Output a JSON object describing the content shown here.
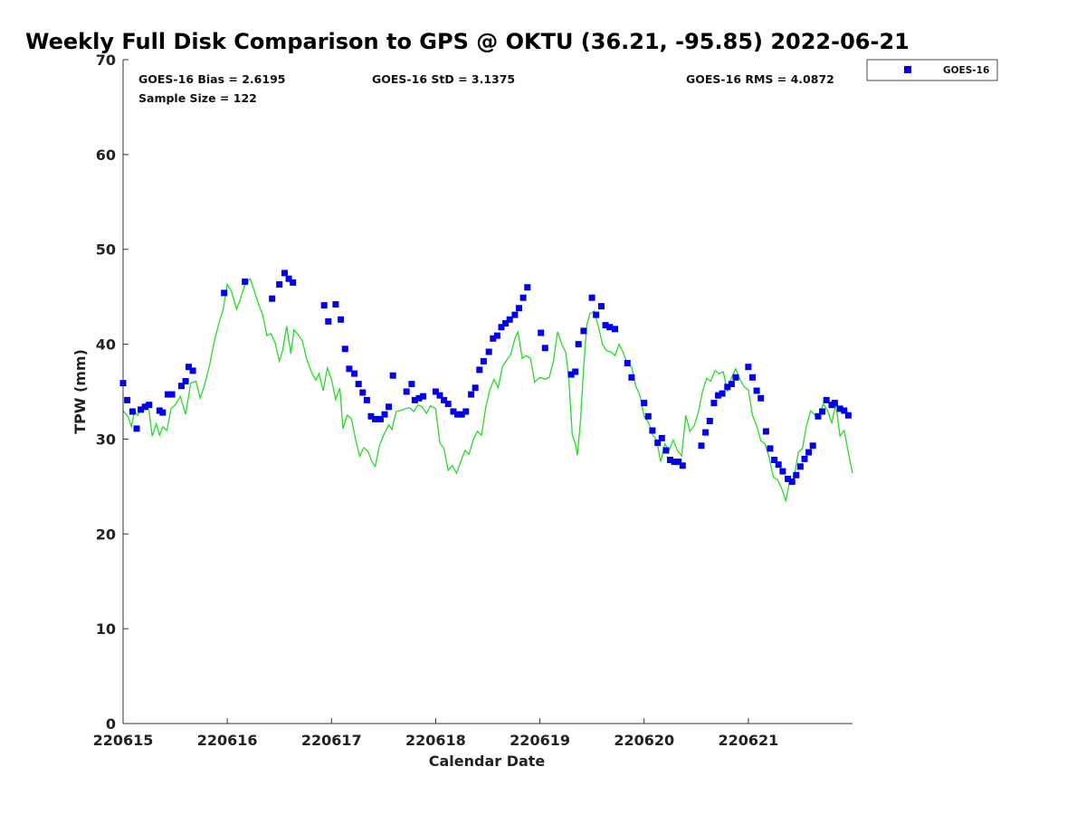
{
  "chart_data": {
    "type": "scatter",
    "title": "Weekly Full Disk Comparison to GPS @ OKTU (36.21, -95.85) 2022-06-21",
    "xlabel": "Calendar Date",
    "ylabel": "TPW (mm)",
    "xlim": [
      0,
      7
    ],
    "ylim": [
      0,
      70
    ],
    "x_ticks": [
      0,
      1,
      2,
      3,
      4,
      5,
      6
    ],
    "x_tick_labels": [
      "220615",
      "220616",
      "220617",
      "220618",
      "220619",
      "220620",
      "220621"
    ],
    "y_ticks": [
      0,
      10,
      20,
      30,
      40,
      50,
      60,
      70
    ],
    "y_tick_labels": [
      "0",
      "10",
      "20",
      "30",
      "40",
      "50",
      "60",
      "70"
    ],
    "x_unit_note": "x values are days elapsed from 220615",
    "stats": {
      "bias": "GOES-16 Bias = 2.6195",
      "sample_size": "Sample Size = 122",
      "std": "GOES-16 StD = 3.1375",
      "rms": "GOES-16 RMS = 4.0872"
    },
    "legend": {
      "position": "top-right",
      "entries": [
        "GOES-16"
      ]
    },
    "colors": {
      "goes": "#0000ee",
      "gps": "#22dd22"
    },
    "series": [
      {
        "name": "GOES-16",
        "kind": "markers",
        "color": "#0000ee",
        "points": [
          [
            0.0,
            35.9
          ],
          [
            0.04,
            34.1
          ],
          [
            0.09,
            32.9
          ],
          [
            0.13,
            31.1
          ],
          [
            0.17,
            33.1
          ],
          [
            0.21,
            33.4
          ],
          [
            0.25,
            33.6
          ],
          [
            0.35,
            33.0
          ],
          [
            0.38,
            32.8
          ],
          [
            0.43,
            34.7
          ],
          [
            0.47,
            34.7
          ],
          [
            0.56,
            35.6
          ],
          [
            0.6,
            36.1
          ],
          [
            0.63,
            37.6
          ],
          [
            0.67,
            37.2
          ],
          [
            0.97,
            45.4
          ],
          [
            1.17,
            46.6
          ],
          [
            1.43,
            44.8
          ],
          [
            1.5,
            46.3
          ],
          [
            1.55,
            47.5
          ],
          [
            1.59,
            46.9
          ],
          [
            1.63,
            46.5
          ],
          [
            1.93,
            44.1
          ],
          [
            1.97,
            42.4
          ],
          [
            2.04,
            44.2
          ],
          [
            2.09,
            42.6
          ],
          [
            2.13,
            39.5
          ],
          [
            2.17,
            37.4
          ],
          [
            2.22,
            36.9
          ],
          [
            2.26,
            35.8
          ],
          [
            2.3,
            34.9
          ],
          [
            2.34,
            34.1
          ],
          [
            2.38,
            32.4
          ],
          [
            2.42,
            32.1
          ],
          [
            2.47,
            32.1
          ],
          [
            2.51,
            32.6
          ],
          [
            2.55,
            33.4
          ],
          [
            2.59,
            36.7
          ],
          [
            2.72,
            35.0
          ],
          [
            2.77,
            35.8
          ],
          [
            2.8,
            34.1
          ],
          [
            2.84,
            34.3
          ],
          [
            2.88,
            34.5
          ],
          [
            3.0,
            35.0
          ],
          [
            3.04,
            34.6
          ],
          [
            3.08,
            34.1
          ],
          [
            3.12,
            33.7
          ],
          [
            3.17,
            32.9
          ],
          [
            3.21,
            32.6
          ],
          [
            3.25,
            32.6
          ],
          [
            3.29,
            32.9
          ],
          [
            3.34,
            34.7
          ],
          [
            3.38,
            35.4
          ],
          [
            3.42,
            37.3
          ],
          [
            3.46,
            38.2
          ],
          [
            3.51,
            39.2
          ],
          [
            3.55,
            40.6
          ],
          [
            3.59,
            40.9
          ],
          [
            3.63,
            41.8
          ],
          [
            3.67,
            42.2
          ],
          [
            3.71,
            42.6
          ],
          [
            3.76,
            43.1
          ],
          [
            3.8,
            43.8
          ],
          [
            3.84,
            44.9
          ],
          [
            3.88,
            46.0
          ],
          [
            4.01,
            41.2
          ],
          [
            4.05,
            39.6
          ],
          [
            4.3,
            36.8
          ],
          [
            4.34,
            37.1
          ],
          [
            4.37,
            40.0
          ],
          [
            4.42,
            41.4
          ],
          [
            4.5,
            44.9
          ],
          [
            4.54,
            43.1
          ],
          [
            4.59,
            44.0
          ],
          [
            4.63,
            42.0
          ],
          [
            4.67,
            41.8
          ],
          [
            4.72,
            41.6
          ],
          [
            4.84,
            38.0
          ],
          [
            4.88,
            36.5
          ],
          [
            5.0,
            33.8
          ],
          [
            5.04,
            32.4
          ],
          [
            5.08,
            30.9
          ],
          [
            5.13,
            29.6
          ],
          [
            5.17,
            30.1
          ],
          [
            5.21,
            28.8
          ],
          [
            5.25,
            27.8
          ],
          [
            5.29,
            27.6
          ],
          [
            5.33,
            27.6
          ],
          [
            5.37,
            27.2
          ],
          [
            5.55,
            29.3
          ],
          [
            5.59,
            30.7
          ],
          [
            5.63,
            31.9
          ],
          [
            5.67,
            33.8
          ],
          [
            5.71,
            34.6
          ],
          [
            5.75,
            34.8
          ],
          [
            5.8,
            35.5
          ],
          [
            5.84,
            35.8
          ],
          [
            5.88,
            36.5
          ],
          [
            6.0,
            37.6
          ],
          [
            6.04,
            36.5
          ],
          [
            6.08,
            35.1
          ],
          [
            6.12,
            34.3
          ],
          [
            6.17,
            30.8
          ],
          [
            6.21,
            29.0
          ],
          [
            6.25,
            27.8
          ],
          [
            6.29,
            27.3
          ],
          [
            6.33,
            26.6
          ],
          [
            6.38,
            25.8
          ],
          [
            6.42,
            25.5
          ],
          [
            6.46,
            26.2
          ],
          [
            6.5,
            27.1
          ],
          [
            6.54,
            27.9
          ],
          [
            6.58,
            28.6
          ],
          [
            6.62,
            29.3
          ],
          [
            6.67,
            32.4
          ],
          [
            6.71,
            32.9
          ],
          [
            6.75,
            34.1
          ],
          [
            6.8,
            33.6
          ],
          [
            6.83,
            33.8
          ],
          [
            6.88,
            33.2
          ],
          [
            6.92,
            33.0
          ],
          [
            6.96,
            32.5
          ]
        ]
      },
      {
        "name": "",
        "kind": "line",
        "color": "#22dd22",
        "points": [
          [
            0.0,
            33.0
          ],
          [
            0.05,
            32.3
          ],
          [
            0.08,
            31.3
          ],
          [
            0.11,
            33.0
          ],
          [
            0.14,
            32.5
          ],
          [
            0.18,
            33.3
          ],
          [
            0.22,
            33.8
          ],
          [
            0.25,
            32.9
          ],
          [
            0.28,
            30.3
          ],
          [
            0.32,
            31.6
          ],
          [
            0.35,
            30.4
          ],
          [
            0.38,
            31.3
          ],
          [
            0.42,
            30.9
          ],
          [
            0.46,
            33.2
          ],
          [
            0.5,
            33.6
          ],
          [
            0.55,
            34.5
          ],
          [
            0.6,
            32.6
          ],
          [
            0.65,
            35.9
          ],
          [
            0.7,
            36.1
          ],
          [
            0.74,
            34.3
          ],
          [
            0.78,
            35.6
          ],
          [
            0.83,
            37.8
          ],
          [
            0.88,
            40.5
          ],
          [
            0.92,
            42.2
          ],
          [
            0.96,
            43.6
          ],
          [
            1.0,
            46.3
          ],
          [
            1.04,
            45.6
          ],
          [
            1.09,
            43.7
          ],
          [
            1.13,
            44.9
          ],
          [
            1.17,
            46.3
          ],
          [
            1.22,
            46.9
          ],
          [
            1.26,
            45.6
          ],
          [
            1.3,
            44.2
          ],
          [
            1.34,
            43.1
          ],
          [
            1.38,
            40.9
          ],
          [
            1.42,
            41.1
          ],
          [
            1.46,
            40.1
          ],
          [
            1.5,
            38.2
          ],
          [
            1.53,
            39.3
          ],
          [
            1.57,
            41.9
          ],
          [
            1.61,
            39.0
          ],
          [
            1.64,
            41.5
          ],
          [
            1.68,
            41.0
          ],
          [
            1.72,
            40.4
          ],
          [
            1.76,
            38.5
          ],
          [
            1.81,
            37.0
          ],
          [
            1.85,
            36.2
          ],
          [
            1.88,
            36.9
          ],
          [
            1.92,
            35.1
          ],
          [
            1.96,
            37.5
          ],
          [
            2.0,
            36.3
          ],
          [
            2.04,
            34.2
          ],
          [
            2.08,
            35.4
          ],
          [
            2.11,
            31.1
          ],
          [
            2.15,
            32.5
          ],
          [
            2.19,
            32.2
          ],
          [
            2.23,
            30.0
          ],
          [
            2.27,
            28.2
          ],
          [
            2.31,
            29.1
          ],
          [
            2.35,
            28.7
          ],
          [
            2.39,
            27.6
          ],
          [
            2.42,
            27.1
          ],
          [
            2.46,
            29.3
          ],
          [
            2.5,
            30.4
          ],
          [
            2.55,
            31.5
          ],
          [
            2.58,
            31.0
          ],
          [
            2.62,
            32.9
          ],
          [
            2.66,
            33.0
          ],
          [
            2.71,
            33.2
          ],
          [
            2.75,
            33.3
          ],
          [
            2.79,
            32.9
          ],
          [
            2.83,
            33.6
          ],
          [
            2.87,
            33.4
          ],
          [
            2.91,
            32.7
          ],
          [
            2.95,
            33.5
          ],
          [
            3.0,
            33.2
          ],
          [
            3.04,
            29.6
          ],
          [
            3.08,
            29.0
          ],
          [
            3.12,
            26.7
          ],
          [
            3.16,
            27.2
          ],
          [
            3.2,
            26.4
          ],
          [
            3.24,
            27.6
          ],
          [
            3.28,
            28.8
          ],
          [
            3.32,
            28.4
          ],
          [
            3.36,
            29.9
          ],
          [
            3.4,
            30.8
          ],
          [
            3.44,
            30.4
          ],
          [
            3.48,
            33.3
          ],
          [
            3.52,
            35.2
          ],
          [
            3.56,
            36.3
          ],
          [
            3.6,
            35.4
          ],
          [
            3.64,
            37.6
          ],
          [
            3.68,
            38.3
          ],
          [
            3.72,
            38.9
          ],
          [
            3.76,
            40.6
          ],
          [
            3.79,
            41.3
          ],
          [
            3.83,
            38.5
          ],
          [
            3.87,
            38.8
          ],
          [
            3.91,
            38.5
          ],
          [
            3.95,
            36.0
          ],
          [
            4.0,
            36.5
          ],
          [
            4.05,
            36.3
          ],
          [
            4.09,
            36.5
          ],
          [
            4.13,
            38.2
          ],
          [
            4.17,
            41.3
          ],
          [
            4.21,
            40.0
          ],
          [
            4.25,
            39.1
          ],
          [
            4.28,
            36.0
          ],
          [
            4.31,
            30.5
          ],
          [
            4.34,
            29.5
          ],
          [
            4.36,
            28.3
          ],
          [
            4.39,
            32.0
          ],
          [
            4.42,
            37.5
          ],
          [
            4.45,
            42.0
          ],
          [
            4.48,
            43.2
          ],
          [
            4.52,
            43.5
          ],
          [
            4.56,
            41.9
          ],
          [
            4.6,
            40.0
          ],
          [
            4.64,
            39.3
          ],
          [
            4.68,
            39.2
          ],
          [
            4.72,
            38.8
          ],
          [
            4.76,
            40.0
          ],
          [
            4.8,
            39.1
          ],
          [
            4.84,
            37.9
          ],
          [
            4.88,
            37.6
          ],
          [
            4.92,
            35.6
          ],
          [
            4.96,
            34.6
          ],
          [
            5.0,
            32.4
          ],
          [
            5.04,
            31.8
          ],
          [
            5.08,
            30.5
          ],
          [
            5.12,
            29.9
          ],
          [
            5.16,
            27.6
          ],
          [
            5.2,
            29.5
          ],
          [
            5.24,
            28.8
          ],
          [
            5.28,
            29.9
          ],
          [
            5.32,
            28.8
          ],
          [
            5.36,
            28.2
          ],
          [
            5.4,
            32.5
          ],
          [
            5.44,
            30.8
          ],
          [
            5.48,
            31.4
          ],
          [
            5.52,
            32.8
          ],
          [
            5.56,
            35.0
          ],
          [
            5.6,
            36.4
          ],
          [
            5.64,
            36.1
          ],
          [
            5.68,
            37.2
          ],
          [
            5.72,
            36.9
          ],
          [
            5.76,
            37.1
          ],
          [
            5.8,
            35.0
          ],
          [
            5.84,
            36.5
          ],
          [
            5.88,
            37.4
          ],
          [
            5.92,
            36.3
          ],
          [
            5.96,
            35.5
          ],
          [
            6.0,
            35.2
          ],
          [
            6.04,
            32.5
          ],
          [
            6.08,
            31.4
          ],
          [
            6.12,
            29.8
          ],
          [
            6.16,
            29.5
          ],
          [
            6.2,
            28.1
          ],
          [
            6.24,
            26.0
          ],
          [
            6.28,
            25.7
          ],
          [
            6.32,
            24.8
          ],
          [
            6.36,
            23.5
          ],
          [
            6.4,
            25.7
          ],
          [
            6.44,
            25.9
          ],
          [
            6.48,
            28.6
          ],
          [
            6.52,
            29.0
          ],
          [
            6.56,
            31.5
          ],
          [
            6.6,
            33.0
          ],
          [
            6.64,
            32.5
          ],
          [
            6.68,
            32.6
          ],
          [
            6.72,
            33.7
          ],
          [
            6.76,
            33.0
          ],
          [
            6.8,
            31.7
          ],
          [
            6.84,
            33.7
          ],
          [
            6.88,
            30.3
          ],
          [
            6.92,
            30.9
          ],
          [
            6.96,
            28.6
          ],
          [
            7.0,
            26.4
          ]
        ]
      }
    ]
  }
}
